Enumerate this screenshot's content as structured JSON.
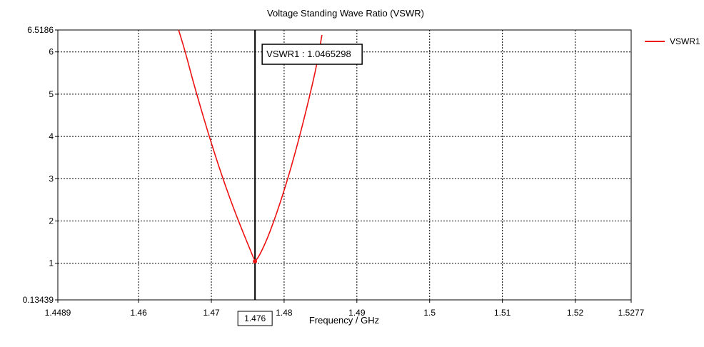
{
  "chart_data": {
    "type": "line",
    "title": "Voltage Standing Wave Ratio (VSWR)",
    "xlabel": "Frequency / GHz",
    "ylabel": "",
    "xlim": [
      1.4489,
      1.5277
    ],
    "ylim": [
      0.13439,
      6.5186
    ],
    "x_ticks": [
      "1.4489",
      "1.46",
      "1.47",
      "1.48",
      "1.49",
      "1.5",
      "1.51",
      "1.52",
      "1.5277"
    ],
    "x_tick_values": [
      1.4489,
      1.46,
      1.47,
      1.48,
      1.49,
      1.5,
      1.51,
      1.52,
      1.5277
    ],
    "y_ticks": [
      "0.13439",
      "1",
      "2",
      "3",
      "4",
      "5",
      "6",
      "6.5186"
    ],
    "y_tick_values": [
      0.13439,
      1,
      2,
      3,
      4,
      5,
      6,
      6.5186
    ],
    "grid": true,
    "legend_position": "top-right",
    "series": [
      {
        "name": "VSWR1",
        "color": "#ee1111",
        "x": [
          1.4655,
          1.4665,
          1.4675,
          1.4685,
          1.4695,
          1.4705,
          1.4715,
          1.4725,
          1.4735,
          1.4745,
          1.4755,
          1.476,
          1.4765,
          1.4775,
          1.4785,
          1.4795,
          1.4805,
          1.4815,
          1.4825,
          1.4835,
          1.4845,
          1.4852
        ],
        "y": [
          6.52,
          5.95,
          5.3,
          4.7,
          4.12,
          3.57,
          3.05,
          2.56,
          2.1,
          1.67,
          1.25,
          1.0465,
          1.15,
          1.5,
          1.95,
          2.45,
          3.0,
          3.6,
          4.25,
          4.95,
          5.7,
          6.4
        ]
      }
    ],
    "marker": {
      "x": 1.476,
      "x_label": "1.476",
      "label": "VSWR1 : 1.0465298"
    }
  }
}
